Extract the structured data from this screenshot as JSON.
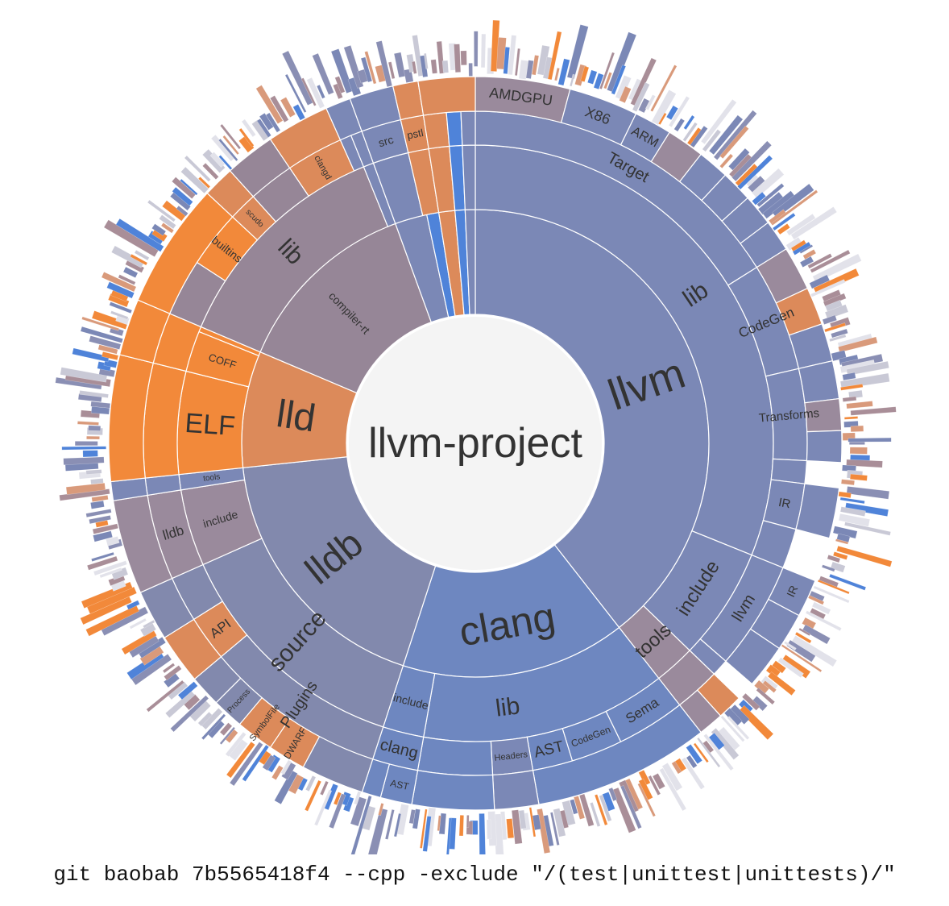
{
  "center_label": "llvm-project",
  "caption": "git baobab 7b5565418f4 --cpp -exclude \"/(test|unittest|unittests)/\"",
  "colors": {
    "llvm": "#7b88b6",
    "clang": "#6e87c0",
    "lldb": "#8289ad",
    "lld": "#dc8a5a",
    "compiler_rt": "#968697",
    "other_dir": "#9a8a9c",
    "orange": "#f2893a",
    "blue": "#4f83d9",
    "center": "#f4f4f4",
    "stroke": "#ffffff"
  },
  "labels": {
    "llvm": "llvm",
    "clang": "clang",
    "lldb": "lldb",
    "lld": "lld",
    "compiler_rt": "compiler-rt",
    "llvm_lib": "lib",
    "llvm_include": "include",
    "llvm_tools": "tools",
    "target": "Target",
    "codegen": "CodeGen",
    "transforms": "Transforms",
    "ir": "IR",
    "amdgpu": "AMDGPU",
    "x86": "X86",
    "arm": "ARM",
    "include_llvm": "llvm",
    "include_ir": "IR",
    "clang_lib": "lib",
    "clang_include": "include",
    "clang_include_clang": "clang",
    "clang_include_ast": "AST",
    "headers": "Headers",
    "ast": "AST",
    "clang_codegen": "CodeGen",
    "sema": "Sema",
    "source": "source",
    "plugins": "Plugins",
    "api": "API",
    "process": "Process",
    "symbolfile": "SymbolFile",
    "dwarf": "DWARF",
    "lldb_include": "include",
    "lldb_include_lldb": "lldb",
    "lldb_tools": "tools",
    "elf": "ELF",
    "coff": "COFF",
    "crt_lib": "lib",
    "builtins": "builtins",
    "scudo": "scudo",
    "clangd": "clangd",
    "src": "src",
    "pstl": "pstl"
  }
}
